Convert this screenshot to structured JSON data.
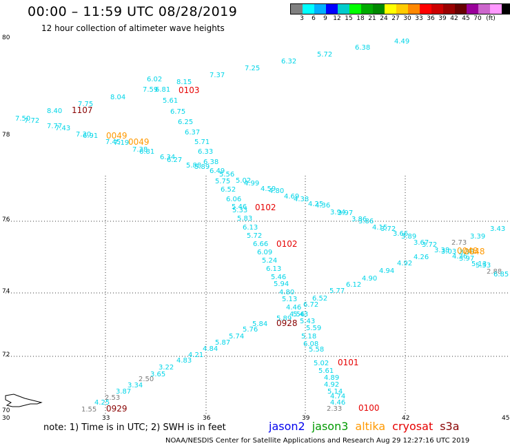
{
  "header": {
    "title": "00:00 – 11:59 UTC 08/28/2019",
    "subtitle": "12 hour collection of altimeter wave heights"
  },
  "legend": {
    "colors": [
      "#808080",
      "#00ffff",
      "#00b0ff",
      "#0000ff",
      "#00cccc",
      "#00ff00",
      "#00aa00",
      "#008800",
      "#ffff00",
      "#ffcc00",
      "#ff8800",
      "#ff0000",
      "#cc0000",
      "#990000",
      "#660000",
      "#990099",
      "#cc66cc",
      "#ff99ff",
      "#000000"
    ],
    "labels": [
      "3",
      "6",
      "9",
      "12",
      "15",
      "18",
      "21",
      "24",
      "27",
      "30",
      "33",
      "36",
      "39",
      "42",
      "45",
      "70",
      "(ft)"
    ]
  },
  "axes": {
    "lat_labels": [
      "80",
      "78",
      "76",
      "74",
      "72",
      "70"
    ],
    "lon_labels": [
      "30",
      "33",
      "36",
      "39",
      "42",
      "45"
    ]
  },
  "passes": [
    {
      "text": "0103",
      "color": "#e60000"
    },
    {
      "text": "1107",
      "color": "#880000"
    },
    {
      "text": "0049",
      "color": "#ff9900"
    },
    {
      "text": "0049",
      "color": "#ff9900"
    },
    {
      "text": "0102",
      "color": "#e60000"
    },
    {
      "text": "0102",
      "color": "#e60000"
    },
    {
      "text": "0928",
      "color": "#880000"
    },
    {
      "text": "0101",
      "color": "#e60000"
    },
    {
      "text": "0100",
      "color": "#e60000"
    },
    {
      "text": "0929",
      "color": "#880000"
    },
    {
      "text": "0048",
      "color": "#ff9900"
    },
    {
      "text": "0048",
      "color": "#ff9900"
    }
  ],
  "wave_values": [
    {
      "text": "4.49",
      "c": "c"
    },
    {
      "text": "6.38",
      "c": "c"
    },
    {
      "text": "5.72",
      "c": "c"
    },
    {
      "text": "6.32",
      "c": "c"
    },
    {
      "text": "7.25",
      "c": "c"
    },
    {
      "text": "7.37",
      "c": "c"
    },
    {
      "text": "8.15",
      "c": "c"
    },
    {
      "text": "6.02",
      "c": "c"
    },
    {
      "text": "7.59",
      "c": "c"
    },
    {
      "text": "6.81",
      "c": "c"
    },
    {
      "text": "8.04",
      "c": "c"
    },
    {
      "text": "5.61",
      "c": "c"
    },
    {
      "text": "7.75",
      "c": "c"
    },
    {
      "text": "8.40",
      "c": "c"
    },
    {
      "text": "6.75",
      "c": "c"
    },
    {
      "text": "7.50",
      "c": "c"
    },
    {
      "text": "7.72",
      "c": "c"
    },
    {
      "text": "6.25",
      "c": "c"
    },
    {
      "text": "7.77",
      "c": "c"
    },
    {
      "text": "7.43",
      "c": "c"
    },
    {
      "text": "6.37",
      "c": "c"
    },
    {
      "text": "7.30",
      "c": "c"
    },
    {
      "text": "6.91",
      "c": "c"
    },
    {
      "text": "7.45",
      "c": "c"
    },
    {
      "text": "7.19",
      "c": "c"
    },
    {
      "text": "5.71",
      "c": "c"
    },
    {
      "text": "7.38",
      "c": "c"
    },
    {
      "text": "6.81",
      "c": "c"
    },
    {
      "text": "6.33",
      "c": "c"
    },
    {
      "text": "6.34",
      "c": "c"
    },
    {
      "text": "6.27",
      "c": "c"
    },
    {
      "text": "6.38",
      "c": "c"
    },
    {
      "text": "5.88",
      "c": "c"
    },
    {
      "text": "5.89",
      "c": "c"
    },
    {
      "text": "6.49",
      "c": "c"
    },
    {
      "text": "5.56",
      "c": "c"
    },
    {
      "text": "5.75",
      "c": "c"
    },
    {
      "text": "5.02",
      "c": "c"
    },
    {
      "text": "4.99",
      "c": "c"
    },
    {
      "text": "6.52",
      "c": "c"
    },
    {
      "text": "4.59",
      "c": "c"
    },
    {
      "text": "4.80",
      "c": "c"
    },
    {
      "text": "6.06",
      "c": "c"
    },
    {
      "text": "4.69",
      "c": "c"
    },
    {
      "text": "4.38",
      "c": "c"
    },
    {
      "text": "5.46",
      "c": "c"
    },
    {
      "text": "5.33",
      "c": "c"
    },
    {
      "text": "4.25",
      "c": "c"
    },
    {
      "text": "4.36",
      "c": "c"
    },
    {
      "text": "3.94",
      "c": "c"
    },
    {
      "text": "3.97",
      "c": "c"
    },
    {
      "text": "5.83",
      "c": "c"
    },
    {
      "text": "3.86",
      "c": "c"
    },
    {
      "text": "3.86",
      "c": "c"
    },
    {
      "text": "6.13",
      "c": "c"
    },
    {
      "text": "4.15",
      "c": "c"
    },
    {
      "text": "3.72",
      "c": "c"
    },
    {
      "text": "5.72",
      "c": "c"
    },
    {
      "text": "3.66",
      "c": "c"
    },
    {
      "text": "3.89",
      "c": "c"
    },
    {
      "text": "3.67",
      "c": "c"
    },
    {
      "text": "3.72",
      "c": "c"
    },
    {
      "text": "6.66",
      "c": "c"
    },
    {
      "text": "2.73",
      "c": "g"
    },
    {
      "text": "3.38",
      "c": "c"
    },
    {
      "text": "3.03",
      "c": "c"
    },
    {
      "text": "3.58",
      "c": "c"
    },
    {
      "text": "6.09",
      "c": "c"
    },
    {
      "text": "4.26",
      "c": "c"
    },
    {
      "text": "4.26",
      "c": "c"
    },
    {
      "text": "3.97",
      "c": "c"
    },
    {
      "text": "5.24",
      "c": "c"
    },
    {
      "text": "4.92",
      "c": "c"
    },
    {
      "text": "5.13",
      "c": "c"
    },
    {
      "text": "3.39",
      "c": "c"
    },
    {
      "text": "3.43",
      "c": "c"
    },
    {
      "text": "6.13",
      "c": "c"
    },
    {
      "text": "5.53",
      "c": "c"
    },
    {
      "text": "2.88",
      "c": "g"
    },
    {
      "text": "6.85",
      "c": "c"
    },
    {
      "text": "4.94",
      "c": "c"
    },
    {
      "text": "5.46",
      "c": "c"
    },
    {
      "text": "4.90",
      "c": "c"
    },
    {
      "text": "5.94",
      "c": "c"
    },
    {
      "text": "6.12",
      "c": "c"
    },
    {
      "text": "4.80",
      "c": "c"
    },
    {
      "text": "5.77",
      "c": "c"
    },
    {
      "text": "5.13",
      "c": "c"
    },
    {
      "text": "6.52",
      "c": "c"
    },
    {
      "text": "6.72",
      "c": "c"
    },
    {
      "text": "4.46",
      "c": "c"
    },
    {
      "text": "5.43",
      "c": "c"
    },
    {
      "text": "4.56",
      "c": "c"
    },
    {
      "text": "5.89",
      "c": "c"
    },
    {
      "text": "5.43",
      "c": "c"
    },
    {
      "text": "5.84",
      "c": "c"
    },
    {
      "text": "5.76",
      "c": "c"
    },
    {
      "text": "5.59",
      "c": "c"
    },
    {
      "text": "5.74",
      "c": "c"
    },
    {
      "text": "5.18",
      "c": "c"
    },
    {
      "text": "5.87",
      "c": "c"
    },
    {
      "text": "6.08",
      "c": "c"
    },
    {
      "text": "4.84",
      "c": "c"
    },
    {
      "text": "5.58",
      "c": "c"
    },
    {
      "text": "4.21",
      "c": "c"
    },
    {
      "text": "5.02",
      "c": "c"
    },
    {
      "text": "4.83",
      "c": "c"
    },
    {
      "text": "5.61",
      "c": "c"
    },
    {
      "text": "3.22",
      "c": "c"
    },
    {
      "text": "4.89",
      "c": "c"
    },
    {
      "text": "3.65",
      "c": "c"
    },
    {
      "text": "4.92",
      "c": "c"
    },
    {
      "text": "2.50",
      "c": "g"
    },
    {
      "text": "5.14",
      "c": "c"
    },
    {
      "text": "3.34",
      "c": "c"
    },
    {
      "text": "4.74",
      "c": "c"
    },
    {
      "text": "3.87",
      "c": "c"
    },
    {
      "text": "4.46",
      "c": "c"
    },
    {
      "text": "2.53",
      "c": "g"
    },
    {
      "text": "4.25",
      "c": "c"
    },
    {
      "text": "1.55",
      "c": "g"
    },
    {
      "text": "2.33",
      "c": "g"
    },
    {
      "text": "4.18",
      "c": "c"
    }
  ],
  "note": "note:  1) Time is in UTC;  2) SWH is in feet",
  "satellites": [
    {
      "text": "jason2",
      "color": "#0000ee"
    },
    {
      "text": "jason3",
      "color": "#009900"
    },
    {
      "text": "altika",
      "color": "#ff9900"
    },
    {
      "text": "cryosat",
      "color": "#e60000"
    },
    {
      "text": "s3a",
      "color": "#880000"
    }
  ],
  "credit": "NOAA/NESDIS Center for Satellite Applications and Research     Aug 29 12:27:16 UTC 2019"
}
